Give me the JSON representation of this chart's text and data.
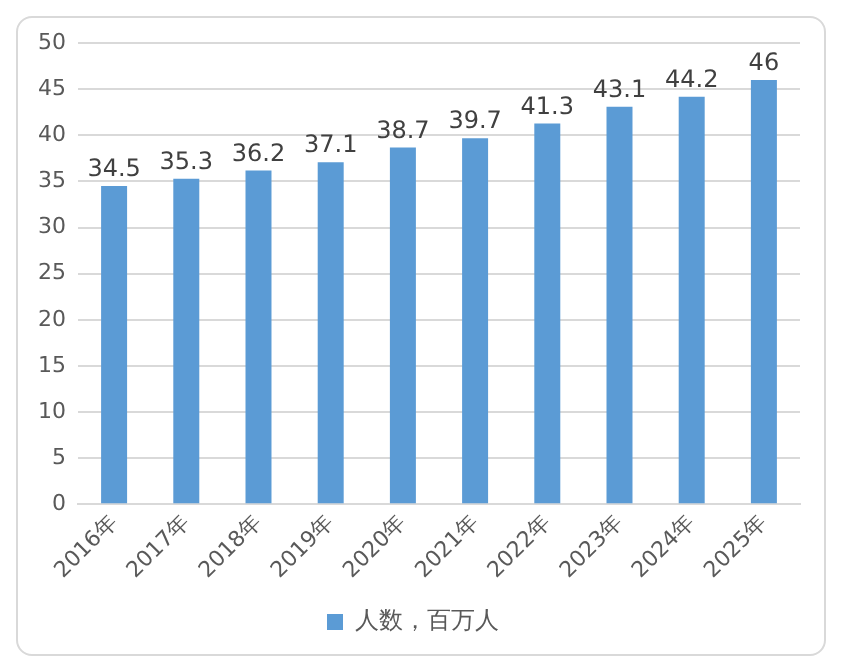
{
  "chart_data": {
    "type": "bar",
    "categories": [
      "2016年",
      "2017年",
      "2018年",
      "2019年",
      "2020年",
      "2021年",
      "2022年",
      "2023年",
      "2024年",
      "2025年"
    ],
    "series": [
      {
        "name": "人数，百万人",
        "color": "#5b9bd5",
        "values": [
          34.5,
          35.3,
          36.2,
          37.1,
          38.7,
          39.7,
          41.3,
          43.1,
          44.2,
          46
        ]
      }
    ],
    "ylim": [
      0,
      50
    ],
    "yticks": [
      0,
      5,
      10,
      15,
      20,
      25,
      30,
      35,
      40,
      45,
      50
    ],
    "grid": "y",
    "legend": "bottom",
    "data_labels": true
  }
}
